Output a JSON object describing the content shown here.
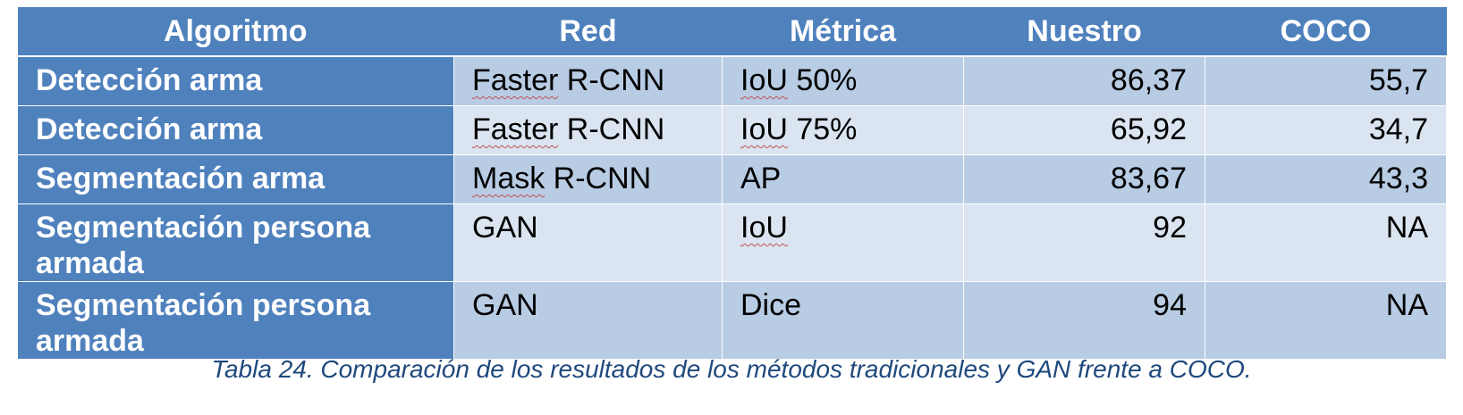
{
  "table": {
    "headers": [
      "Algoritmo",
      "Red",
      "Métrica",
      "Nuestro",
      "COCO"
    ],
    "rows": [
      {
        "algoritmo": "Detección arma",
        "red_a": "Faster",
        "red_b": " R-CNN",
        "metrica_a": "IoU",
        "metrica_b": " 50%",
        "nuestro": "86,37",
        "coco": "55,7"
      },
      {
        "algoritmo": "Detección arma",
        "red_a": "Faster",
        "red_b": " R-CNN",
        "metrica_a": "IoU",
        "metrica_b": " 75%",
        "nuestro": "65,92",
        "coco": "34,7"
      },
      {
        "algoritmo": "Segmentación arma",
        "red_a": "Mask",
        "red_b": " R-CNN",
        "metrica": "AP",
        "nuestro": "83,67",
        "coco": "43,3"
      },
      {
        "algoritmo": "Segmentación persona armada",
        "red": "GAN",
        "metrica_a": "IoU",
        "nuestro": "92",
        "coco": "NA"
      },
      {
        "algoritmo": "Segmentación persona armada",
        "red": "GAN",
        "metrica": "Dice",
        "nuestro": "94",
        "coco": "NA"
      }
    ]
  },
  "caption": "Tabla 24. Comparación de los resultados de los métodos tradicionales y GAN frente a COCO.",
  "colors": {
    "header_bg": "#4f81bd",
    "row_odd_bg": "#b8cce4",
    "row_even_bg": "#dbe5f1",
    "caption_text": "#1f497d",
    "spellcheck_underline": "#c0504d"
  }
}
